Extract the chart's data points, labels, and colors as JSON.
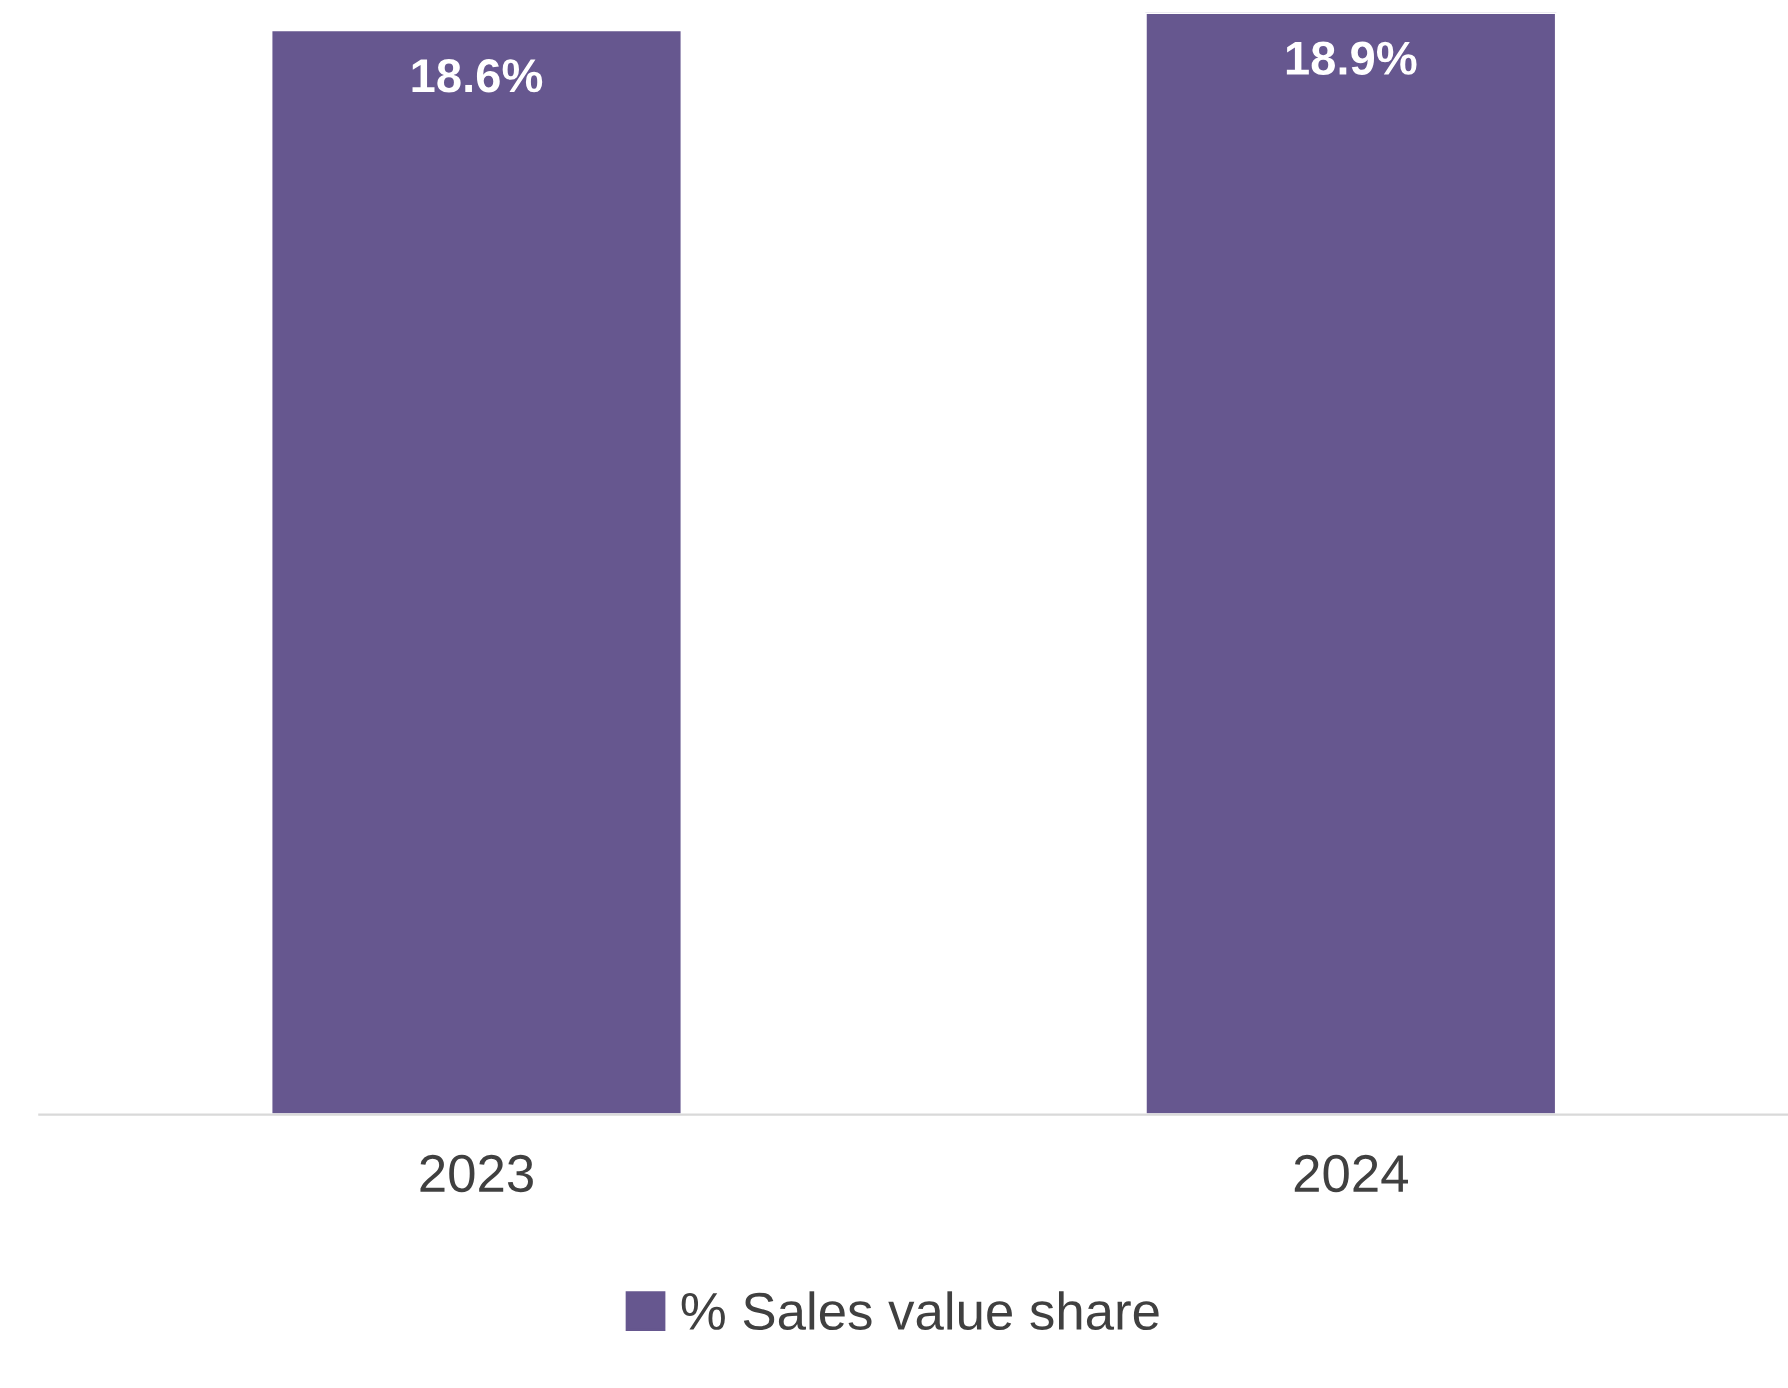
{
  "chart_data": {
    "type": "bar",
    "categories": [
      "2023",
      "2024"
    ],
    "series": [
      {
        "name": "% Sales value share",
        "color": "#66578f",
        "values": [
          18.6,
          18.9
        ],
        "value_labels": [
          "18.6%",
          "18.9%"
        ]
      }
    ],
    "legend": "bottom",
    "tick_labels": "x"
  }
}
